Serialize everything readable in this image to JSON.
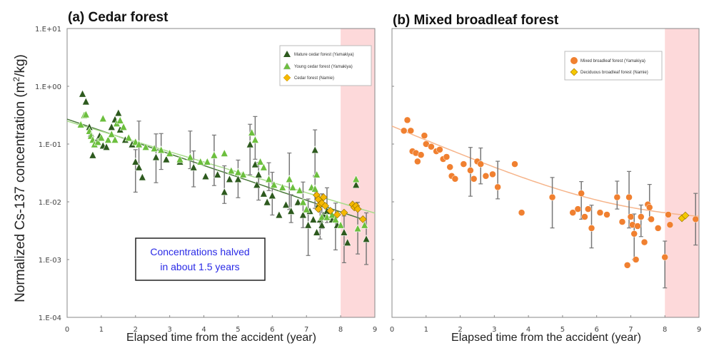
{
  "chart_data": {
    "ylabel": "Normalized Cs-137 concentration (m2/kg)",
    "ylabel_parts": {
      "pre": "Normalized Cs-137 concentration (m",
      "sup": "2",
      "post": "/kg)"
    },
    "colors": {
      "mature": "#2d5a1e",
      "young": "#6cbf3e",
      "namie_cedar": "#f5b800",
      "broadleaf": "#f08030",
      "deciduous": "#f5c800",
      "shade": "#fdd9da",
      "fit_mature": "#4a7a3a",
      "fit_young": "#a8dc8c",
      "fit_broadleaf": "#f6b48a",
      "annotation": "#2a2ae6"
    },
    "panels": [
      {
        "type": "scatter",
        "title": "(a) Cedar forest",
        "xlabel": "Elapsed time from the accident (year)",
        "ylabel": "Normalized Cs-137 concentration (m2/kg)",
        "xlim": [
          0,
          9
        ],
        "ylim": [
          0.0001,
          10
        ],
        "yscale": "log",
        "xticks": [
          "0",
          "1",
          "2",
          "3",
          "4",
          "5",
          "6",
          "7",
          "8",
          "9"
        ],
        "yticks": [
          "1.E-04",
          "1.E-03",
          "1.E-02",
          "1.E-01",
          "1.E+00",
          "1.E+01"
        ],
        "shaded_region": [
          8,
          9
        ],
        "legend_position": "top-right",
        "annotation": {
          "line1": "Concentrations halved",
          "line2": "in about 1.5 years"
        },
        "series": [
          {
            "name": "Mature cedar forest (Yamakiya)",
            "marker": "triangle",
            "color_key": "mature",
            "fit": {
              "a": 0.27,
              "half_life": 1.5
            },
            "points": [
              [
                0.45,
                0.75
              ],
              [
                0.55,
                0.55
              ],
              [
                0.65,
                0.2
              ],
              [
                0.7,
                0.15
              ],
              [
                0.75,
                0.065
              ],
              [
                0.85,
                0.11
              ],
              [
                0.95,
                0.14
              ],
              [
                1.05,
                0.095
              ],
              [
                1.15,
                0.09
              ],
              [
                1.3,
                0.2
              ],
              [
                1.4,
                0.27
              ],
              [
                1.5,
                0.35
              ],
              [
                1.55,
                0.18
              ],
              [
                1.7,
                0.12
              ],
              [
                1.9,
                0.1
              ],
              [
                2.0,
                0.05
              ],
              [
                2.1,
                0.04
              ],
              [
                2.2,
                0.027
              ],
              [
                2.6,
                0.06
              ],
              [
                2.9,
                0.055
              ],
              [
                3.3,
                0.05
              ],
              [
                3.7,
                0.04
              ],
              [
                4.05,
                0.028
              ],
              [
                4.4,
                0.03
              ],
              [
                4.6,
                0.015
              ],
              [
                4.75,
                0.025
              ],
              [
                5.0,
                0.025
              ],
              [
                5.35,
                0.1
              ],
              [
                5.5,
                0.045
              ],
              [
                5.55,
                0.02
              ],
              [
                5.6,
                0.03
              ],
              [
                5.75,
                0.014
              ],
              [
                5.85,
                0.01
              ],
              [
                6.0,
                0.013
              ],
              [
                6.2,
                0.006
              ],
              [
                6.4,
                0.009
              ],
              [
                6.55,
                0.007
              ],
              [
                6.75,
                0.01
              ],
              [
                6.9,
                0.006
              ],
              [
                7.05,
                0.004
              ],
              [
                7.1,
                0.007
              ],
              [
                7.2,
                0.005
              ],
              [
                7.25,
                0.08
              ],
              [
                7.3,
                0.003
              ],
              [
                7.35,
                0.009
              ],
              [
                7.4,
                0.005
              ],
              [
                7.45,
                0.004
              ],
              [
                7.5,
                0.006
              ],
              [
                7.6,
                0.007
              ],
              [
                7.75,
                0.005
              ],
              [
                7.9,
                0.004
              ],
              [
                8.1,
                0.003
              ],
              [
                8.2,
                0.002
              ],
              [
                8.45,
                0.02
              ],
              [
                8.75,
                0.0023
              ]
            ]
          },
          {
            "name": "Young cedar forest (Yamakiya)",
            "marker": "triangle",
            "color_key": "young",
            "fit": {
              "a": 0.25,
              "half_life": 1.7
            },
            "points": [
              [
                0.4,
                0.22
              ],
              [
                0.5,
                0.32
              ],
              [
                0.55,
                0.33
              ],
              [
                0.65,
                0.17
              ],
              [
                0.7,
                0.14
              ],
              [
                0.75,
                0.12
              ],
              [
                0.8,
                0.1
              ],
              [
                0.9,
                0.11
              ],
              [
                1.0,
                0.13
              ],
              [
                1.05,
                0.28
              ],
              [
                1.2,
                0.12
              ],
              [
                1.3,
                0.15
              ],
              [
                1.4,
                0.12
              ],
              [
                1.45,
                0.23
              ],
              [
                1.55,
                0.26
              ],
              [
                1.65,
                0.2
              ],
              [
                1.8,
                0.13
              ],
              [
                2.0,
                0.11
              ],
              [
                2.1,
                0.1
              ],
              [
                2.3,
                0.09
              ],
              [
                2.55,
                0.085
              ],
              [
                2.75,
                0.08
              ],
              [
                3.0,
                0.07
              ],
              [
                3.3,
                0.055
              ],
              [
                3.6,
                0.06
              ],
              [
                3.9,
                0.05
              ],
              [
                4.1,
                0.05
              ],
              [
                4.3,
                0.065
              ],
              [
                4.6,
                0.07
              ],
              [
                4.8,
                0.035
              ],
              [
                5.0,
                0.033
              ],
              [
                5.15,
                0.03
              ],
              [
                5.4,
                0.16
              ],
              [
                5.5,
                0.12
              ],
              [
                5.65,
                0.05
              ],
              [
                5.75,
                0.04
              ],
              [
                5.9,
                0.025
              ],
              [
                6.05,
                0.02
              ],
              [
                6.3,
                0.018
              ],
              [
                6.5,
                0.025
              ],
              [
                6.6,
                0.018
              ],
              [
                6.8,
                0.016
              ],
              [
                6.9,
                0.01
              ],
              [
                7.0,
                0.0075
              ],
              [
                7.15,
                0.018
              ],
              [
                7.25,
                0.017
              ],
              [
                7.3,
                0.03
              ],
              [
                7.35,
                0.012
              ],
              [
                7.45,
                0.0055
              ],
              [
                7.6,
                0.0055
              ],
              [
                7.75,
                0.006
              ],
              [
                7.85,
                0.005
              ],
              [
                8.0,
                0.004
              ],
              [
                8.45,
                0.025
              ],
              [
                8.5,
                0.0035
              ],
              [
                8.7,
                0.004
              ]
            ]
          },
          {
            "name": "Cedar forest (Namie)",
            "marker": "diamond",
            "color_key": "namie_cedar",
            "points": [
              [
                7.3,
                0.013
              ],
              [
                7.35,
                0.011
              ],
              [
                7.4,
                0.009
              ],
              [
                7.45,
                0.0095
              ],
              [
                7.5,
                0.012
              ],
              [
                7.55,
                0.0085
              ],
              [
                7.35,
                0.0075
              ],
              [
                7.7,
                0.007
              ],
              [
                7.9,
                0.006
              ],
              [
                8.1,
                0.0065
              ],
              [
                8.35,
                0.009
              ],
              [
                8.4,
                0.008
              ],
              [
                8.45,
                0.0085
              ],
              [
                8.5,
                0.0075
              ],
              [
                8.65,
                0.005
              ]
            ]
          }
        ]
      },
      {
        "type": "scatter",
        "title": "(b) Mixed broadleaf forest",
        "xlabel": "Elapsed time from the accident (year)",
        "xlim": [
          0,
          9
        ],
        "ylim": [
          0.0001,
          10
        ],
        "yscale": "log",
        "xticks": [
          "0",
          "1",
          "2",
          "3",
          "4",
          "5",
          "6",
          "7",
          "8",
          "9"
        ],
        "shaded_region": [
          8,
          9
        ],
        "legend_position": "top-right",
        "series": [
          {
            "name": "Mixed broadleaf forest (Yamakiya)",
            "marker": "circle",
            "color_key": "broadleaf",
            "fit": {
              "curve": "double-exponential",
              "c": 0.0045,
              "a": 0.2,
              "half_life": 1.2
            },
            "points": [
              [
                0.35,
                0.17
              ],
              [
                0.45,
                0.26
              ],
              [
                0.55,
                0.17
              ],
              [
                0.6,
                0.075
              ],
              [
                0.7,
                0.07
              ],
              [
                0.75,
                0.05
              ],
              [
                0.85,
                0.065
              ],
              [
                0.95,
                0.14
              ],
              [
                1.0,
                0.1
              ],
              [
                1.15,
                0.09
              ],
              [
                1.3,
                0.075
              ],
              [
                1.4,
                0.08
              ],
              [
                1.5,
                0.055
              ],
              [
                1.6,
                0.06
              ],
              [
                1.7,
                0.04
              ],
              [
                1.75,
                0.028
              ],
              [
                1.85,
                0.025
              ],
              [
                2.1,
                0.045
              ],
              [
                2.3,
                0.035
              ],
              [
                2.4,
                0.025
              ],
              [
                2.5,
                0.05
              ],
              [
                2.6,
                0.045
              ],
              [
                2.75,
                0.028
              ],
              [
                2.95,
                0.03
              ],
              [
                3.1,
                0.018
              ],
              [
                3.6,
                0.045
              ],
              [
                3.8,
                0.0065
              ],
              [
                4.7,
                0.012
              ],
              [
                5.3,
                0.0065
              ],
              [
                5.45,
                0.0075
              ],
              [
                5.55,
                0.014
              ],
              [
                5.65,
                0.0055
              ],
              [
                5.75,
                0.0075
              ],
              [
                5.85,
                0.0035
              ],
              [
                6.1,
                0.0065
              ],
              [
                6.3,
                0.006
              ],
              [
                6.6,
                0.012
              ],
              [
                6.75,
                0.0045
              ],
              [
                6.9,
                0.0008
              ],
              [
                6.95,
                0.012
              ],
              [
                7.0,
                0.0055
              ],
              [
                7.05,
                0.004
              ],
              [
                7.1,
                0.0028
              ],
              [
                7.15,
                0.001
              ],
              [
                7.2,
                0.0038
              ],
              [
                7.3,
                0.0055
              ],
              [
                7.4,
                0.002
              ],
              [
                7.5,
                0.009
              ],
              [
                7.55,
                0.008
              ],
              [
                7.6,
                0.005
              ],
              [
                7.8,
                0.0035
              ],
              [
                8.0,
                0.0011
              ],
              [
                8.1,
                0.006
              ],
              [
                8.15,
                0.004
              ],
              [
                8.9,
                0.005
              ]
            ]
          },
          {
            "name": "Deciduous broadleaf forest (Namie)",
            "marker": "diamond",
            "color_key": "deciduous",
            "points": [
              [
                8.5,
                0.0052
              ],
              [
                8.6,
                0.0058
              ]
            ]
          }
        ]
      }
    ]
  }
}
